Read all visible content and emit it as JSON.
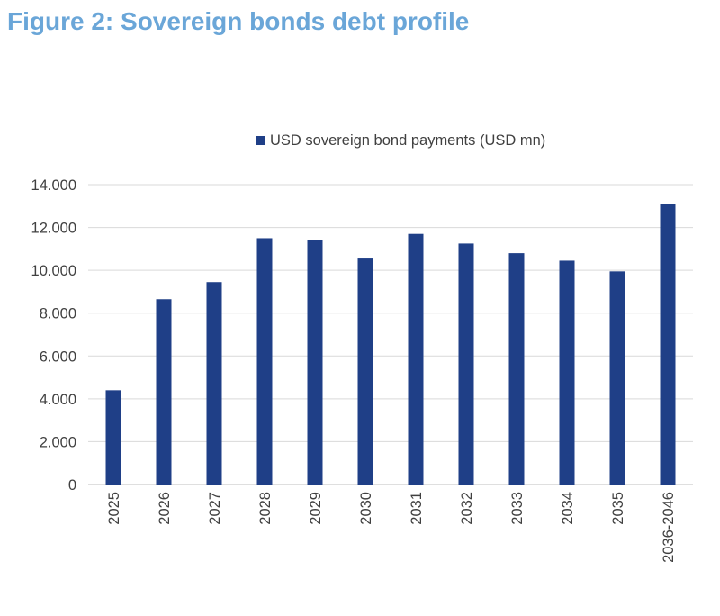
{
  "figure_title": "Figure 2: Sovereign bonds debt profile",
  "chart_data": {
    "type": "bar",
    "categories": [
      "2025",
      "2026",
      "2027",
      "2028",
      "2029",
      "2030",
      "2031",
      "2032",
      "2033",
      "2034",
      "2035",
      "2036-2046"
    ],
    "series": [
      {
        "name": "USD sovereign bond payments (USD mn)",
        "color": "#1f3f87",
        "values": [
          4400,
          8650,
          9450,
          11500,
          11400,
          10550,
          11700,
          11250,
          10800,
          10450,
          9950,
          13100
        ]
      }
    ],
    "yticks": [
      "0",
      "2.000",
      "4.000",
      "6.000",
      "8.000",
      "10.000",
      "12.000",
      "14.000"
    ],
    "ylim": [
      0,
      14000
    ],
    "grid": true,
    "legend_position": "top-center",
    "xlabel": "",
    "ylabel": ""
  }
}
